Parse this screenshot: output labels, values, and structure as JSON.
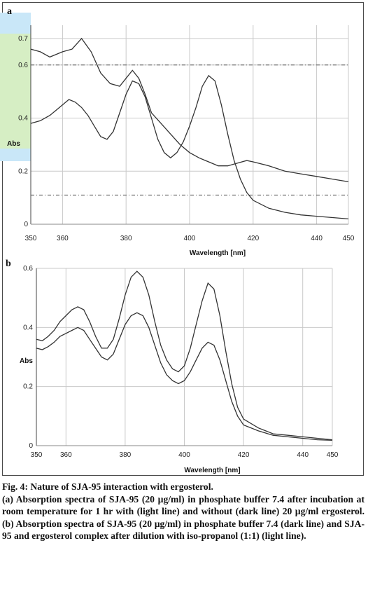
{
  "figure": {
    "caption_title": "Fig. 4: Nature of SJA-95 interaction with ergosterol.",
    "caption_body": "(a) Absorption spectra of SJA-95 (20 µg/ml) in phosphate buffer 7.4 after incubation at room temperature for 1 hr with (light line) and without (dark line) 20 µg/ml ergosterol. (b) Absorption spectra of SJA-95 (20 µg/ml) in phosphate buffer 7.4 (dark line) and SJA-95 and ergosterol complex after dilution with iso-propanol (1:1) (light line)."
  },
  "chart_data": [
    {
      "panel_label": "a",
      "type": "line",
      "xlabel": "Wavelength [nm]",
      "ylabel": "Abs",
      "xlim": [
        350,
        450
      ],
      "ylim": [
        0,
        0.75
      ],
      "x_ticks": [
        350,
        360,
        380,
        400,
        420,
        440,
        450
      ],
      "y_ticks": [
        0,
        0.2,
        0.4,
        0.6,
        0.7
      ],
      "grid": true,
      "reference_lines_y": [
        0.6,
        0.11
      ],
      "series": [
        {
          "x": [
            350,
            353,
            356,
            360,
            363,
            366,
            369,
            372,
            375,
            378,
            380,
            382,
            384,
            386,
            388,
            391,
            394,
            397,
            400,
            403,
            405,
            407,
            409,
            412,
            415,
            418,
            420,
            425,
            430,
            435,
            440,
            445,
            450
          ],
          "values": [
            0.66,
            0.65,
            0.63,
            0.65,
            0.66,
            0.7,
            0.65,
            0.57,
            0.53,
            0.52,
            0.55,
            0.58,
            0.55,
            0.49,
            0.42,
            0.38,
            0.34,
            0.3,
            0.27,
            0.25,
            0.24,
            0.23,
            0.22,
            0.22,
            0.23,
            0.24,
            0.235,
            0.22,
            0.2,
            0.19,
            0.18,
            0.17,
            0.16
          ]
        },
        {
          "x": [
            350,
            353,
            356,
            358,
            360,
            362,
            364,
            366,
            368,
            370,
            372,
            374,
            376,
            378,
            380,
            382,
            384,
            386,
            388,
            390,
            392,
            394,
            396,
            398,
            400,
            402,
            404,
            406,
            408,
            410,
            412,
            414,
            416,
            418,
            420,
            425,
            430,
            435,
            440,
            445,
            450
          ],
          "values": [
            0.38,
            0.39,
            0.41,
            0.43,
            0.45,
            0.47,
            0.46,
            0.44,
            0.41,
            0.37,
            0.33,
            0.32,
            0.35,
            0.42,
            0.49,
            0.54,
            0.53,
            0.48,
            0.4,
            0.32,
            0.27,
            0.25,
            0.27,
            0.31,
            0.37,
            0.44,
            0.52,
            0.56,
            0.54,
            0.45,
            0.34,
            0.24,
            0.17,
            0.12,
            0.09,
            0.06,
            0.045,
            0.035,
            0.03,
            0.025,
            0.02
          ]
        }
      ]
    },
    {
      "panel_label": "b",
      "type": "line",
      "xlabel": "Wavelength [nm]",
      "ylabel": "Abs",
      "xlim": [
        350,
        450
      ],
      "ylim": [
        0,
        0.6
      ],
      "x_ticks": [
        350,
        360,
        380,
        400,
        420,
        440,
        450
      ],
      "y_ticks": [
        0,
        0.2,
        0.4,
        0.6
      ],
      "grid": true,
      "series": [
        {
          "x": [
            350,
            352,
            354,
            356,
            358,
            360,
            362,
            364,
            366,
            368,
            370,
            372,
            374,
            376,
            378,
            380,
            382,
            384,
            386,
            388,
            390,
            392,
            394,
            396,
            398,
            400,
            402,
            404,
            406,
            408,
            410,
            412,
            414,
            416,
            418,
            420,
            425,
            430,
            435,
            440,
            445,
            450
          ],
          "values": [
            0.36,
            0.355,
            0.37,
            0.39,
            0.42,
            0.44,
            0.46,
            0.47,
            0.46,
            0.42,
            0.37,
            0.33,
            0.33,
            0.36,
            0.43,
            0.51,
            0.57,
            0.59,
            0.57,
            0.51,
            0.42,
            0.34,
            0.29,
            0.26,
            0.25,
            0.27,
            0.33,
            0.41,
            0.49,
            0.55,
            0.53,
            0.44,
            0.32,
            0.21,
            0.13,
            0.09,
            0.06,
            0.04,
            0.035,
            0.03,
            0.025,
            0.02
          ]
        },
        {
          "x": [
            350,
            352,
            354,
            356,
            358,
            360,
            362,
            364,
            366,
            368,
            370,
            372,
            374,
            376,
            378,
            380,
            382,
            384,
            386,
            388,
            390,
            392,
            394,
            396,
            398,
            400,
            402,
            404,
            406,
            408,
            410,
            412,
            414,
            416,
            418,
            420,
            425,
            430,
            435,
            440,
            445,
            450
          ],
          "values": [
            0.33,
            0.325,
            0.335,
            0.35,
            0.37,
            0.38,
            0.39,
            0.4,
            0.39,
            0.36,
            0.33,
            0.3,
            0.29,
            0.31,
            0.36,
            0.41,
            0.44,
            0.45,
            0.44,
            0.4,
            0.34,
            0.28,
            0.24,
            0.22,
            0.21,
            0.22,
            0.25,
            0.29,
            0.33,
            0.35,
            0.34,
            0.29,
            0.22,
            0.15,
            0.1,
            0.07,
            0.05,
            0.035,
            0.03,
            0.025,
            0.02,
            0.018
          ]
        }
      ]
    }
  ]
}
